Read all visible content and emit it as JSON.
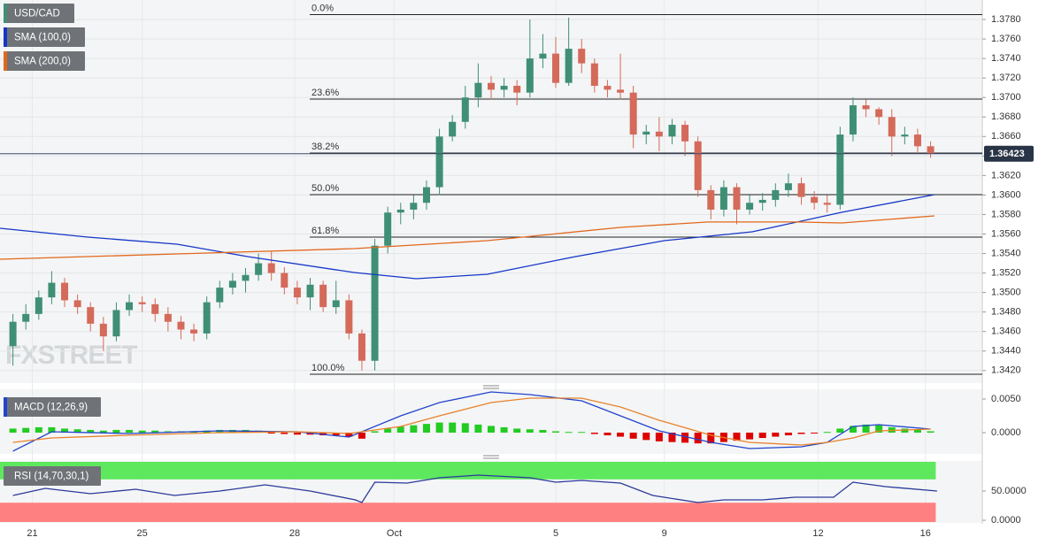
{
  "chart_data": [
    {
      "type": "candlestick",
      "watermark": "FXSTREET",
      "ohlc": {
        "name": "USD/CAD",
        "up_color": "#3f8f75",
        "down_color": "#d46a5a",
        "open": [
          1.3445,
          1.347,
          1.3478,
          1.3495,
          1.351,
          1.3492,
          1.3485,
          1.3468,
          1.3455,
          1.3482,
          1.349,
          1.3488,
          1.3478,
          1.347,
          1.3462,
          1.3458,
          1.349,
          1.3505,
          1.3512,
          1.3518,
          1.353,
          1.352,
          1.3505,
          1.3495,
          1.3508,
          1.3485,
          1.3492,
          1.3458,
          1.343,
          1.3548,
          1.3582,
          1.3585,
          1.3592,
          1.3608,
          1.366,
          1.3675,
          1.37,
          1.3715,
          1.3708,
          1.3712,
          1.3705,
          1.374,
          1.3745,
          1.3715,
          1.375,
          1.3735,
          1.3712,
          1.3708,
          1.3705,
          1.3662,
          1.3665,
          1.366,
          1.3672,
          1.3655,
          1.3605,
          1.3585,
          1.3608,
          1.3585,
          1.3592,
          1.3595,
          1.3605,
          1.3612,
          1.3598,
          1.3592,
          1.359,
          1.3662,
          1.3692,
          1.3688,
          1.368,
          1.366,
          1.3662,
          1.365
        ],
        "high": [
          1.3478,
          1.3488,
          1.3502,
          1.3522,
          1.3515,
          1.3498,
          1.349,
          1.3475,
          1.349,
          1.3498,
          1.3496,
          1.3494,
          1.3485,
          1.3476,
          1.3468,
          1.3496,
          1.3512,
          1.352,
          1.3525,
          1.354,
          1.3542,
          1.3526,
          1.3512,
          1.3515,
          1.3512,
          1.3512,
          1.3498,
          1.3462,
          1.3555,
          1.3588,
          1.3592,
          1.36,
          1.3615,
          1.3668,
          1.3682,
          1.3712,
          1.3735,
          1.3722,
          1.372,
          1.3718,
          1.378,
          1.3765,
          1.3762,
          1.3782,
          1.376,
          1.374,
          1.3718,
          1.3745,
          1.3712,
          1.3672,
          1.368,
          1.3678,
          1.3676,
          1.366,
          1.361,
          1.3615,
          1.3612,
          1.36,
          1.3602,
          1.3612,
          1.3622,
          1.3618,
          1.3604,
          1.36,
          1.367,
          1.37,
          1.3698,
          1.369,
          1.3688,
          1.367,
          1.3668,
          1.3655
        ],
        "low": [
          1.3425,
          1.3462,
          1.3472,
          1.3488,
          1.3485,
          1.3478,
          1.346,
          1.344,
          1.345,
          1.3476,
          1.348,
          1.347,
          1.346,
          1.3452,
          1.345,
          1.3452,
          1.3484,
          1.3498,
          1.35,
          1.3512,
          1.3512,
          1.3498,
          1.3488,
          1.3482,
          1.348,
          1.3478,
          1.3452,
          1.342,
          1.342,
          1.354,
          1.357,
          1.3575,
          1.3585,
          1.36,
          1.3655,
          1.3668,
          1.369,
          1.3698,
          1.37,
          1.3692,
          1.37,
          1.373,
          1.371,
          1.3712,
          1.3725,
          1.3705,
          1.37,
          1.3698,
          1.3648,
          1.3652,
          1.3645,
          1.3652,
          1.364,
          1.3598,
          1.3575,
          1.3578,
          1.357,
          1.358,
          1.3584,
          1.3588,
          1.3598,
          1.359,
          1.3585,
          1.3582,
          1.3585,
          1.3655,
          1.368,
          1.3672,
          1.364,
          1.3652,
          1.3642,
          1.3638
        ],
        "close": [
          1.347,
          1.3478,
          1.3495,
          1.351,
          1.3492,
          1.3485,
          1.3468,
          1.3455,
          1.3482,
          1.349,
          1.3488,
          1.3478,
          1.347,
          1.3462,
          1.3458,
          1.349,
          1.3505,
          1.3512,
          1.3518,
          1.353,
          1.352,
          1.3505,
          1.3495,
          1.3508,
          1.3485,
          1.3492,
          1.3458,
          1.343,
          1.3548,
          1.3582,
          1.3585,
          1.3592,
          1.3608,
          1.366,
          1.3675,
          1.37,
          1.3715,
          1.3708,
          1.3712,
          1.3705,
          1.374,
          1.3745,
          1.3715,
          1.375,
          1.3735,
          1.3712,
          1.3708,
          1.3705,
          1.3662,
          1.3665,
          1.366,
          1.3672,
          1.3655,
          1.3605,
          1.3585,
          1.3608,
          1.3585,
          1.3592,
          1.3595,
          1.3605,
          1.3612,
          1.3598,
          1.3592,
          1.359,
          1.3662,
          1.3692,
          1.3688,
          1.368,
          1.366,
          1.3662,
          1.365,
          1.3642
        ]
      },
      "series": [
        {
          "name": "SMA (100,0)",
          "color": "#1436c8",
          "x": [
            -1,
            5.8,
            12.7,
            18.2,
            26.4,
            31.2,
            36.7,
            43.5,
            50.4,
            57.2,
            64.1,
            71.3
          ],
          "values": [
            1.35659,
            1.35568,
            1.35496,
            1.35368,
            1.35205,
            1.35142,
            1.35187,
            1.35368,
            1.35532,
            1.35623,
            1.35822,
            1.36004
          ]
        },
        {
          "name": "SMA (200,0)",
          "color": "#e2671c",
          "x": [
            -1,
            12.7,
            26.4,
            36.7,
            47,
            53.8,
            60.6,
            64.1,
            71.3
          ],
          "values": [
            1.35341,
            1.35396,
            1.3545,
            1.35532,
            1.35668,
            1.35723,
            1.35723,
            1.35713,
            1.35786
          ]
        }
      ],
      "fib_levels": [
        {
          "label": "0.0%",
          "value": 1.3785
        },
        {
          "label": "23.6%",
          "value": 1.36984
        },
        {
          "label": "38.2%",
          "value": 1.3643
        },
        {
          "label": "50.0%",
          "value": 1.36004
        },
        {
          "label": "61.8%",
          "value": 1.35568
        },
        {
          "label": "100.0%",
          "value": 1.34162
        }
      ],
      "last_price": 1.36423,
      "xlim": [
        -1,
        75
      ],
      "ylim": [
        1.3408,
        1.38
      ],
      "xticks": [
        {
          "value": 1.5,
          "label": "21"
        },
        {
          "value": 10,
          "label": "25"
        },
        {
          "value": 21.8,
          "label": "28"
        },
        {
          "value": 29.5,
          "label": "Oct"
        },
        {
          "value": 42,
          "label": "5"
        },
        {
          "value": 50.4,
          "label": "9"
        },
        {
          "value": 62.3,
          "label": "12"
        },
        {
          "value": 70.6,
          "label": "16"
        }
      ],
      "yticks": [
        {
          "value": 1.342,
          "label": "1.3420"
        },
        {
          "value": 1.344,
          "label": "1.3440"
        },
        {
          "value": 1.346,
          "label": "1.3460"
        },
        {
          "value": 1.348,
          "label": "1.3480"
        },
        {
          "value": 1.35,
          "label": "1.3500"
        },
        {
          "value": 1.352,
          "label": "1.3520"
        },
        {
          "value": 1.354,
          "label": "1.3540"
        },
        {
          "value": 1.356,
          "label": "1.3560"
        },
        {
          "value": 1.358,
          "label": "1.3580"
        },
        {
          "value": 1.36,
          "label": "1.3600"
        },
        {
          "value": 1.362,
          "label": "1.3620"
        },
        {
          "value": 1.364,
          "label": "1.3640"
        },
        {
          "value": 1.366,
          "label": "1.3660"
        },
        {
          "value": 1.368,
          "label": "1.3680"
        },
        {
          "value": 1.37,
          "label": "1.3700"
        },
        {
          "value": 1.372,
          "label": "1.3720"
        },
        {
          "value": 1.374,
          "label": "1.3740"
        },
        {
          "value": 1.376,
          "label": "1.3760"
        },
        {
          "value": 1.378,
          "label": "1.3780"
        }
      ],
      "grid": true
    },
    {
      "type": "macd",
      "title": "MACD (12,26,9)",
      "histogram": {
        "up_color": "#22cc22",
        "down_color": "#dd0000",
        "values": [
          0.0006,
          0.0007,
          0.0008,
          0.0008,
          0.0006,
          0.0005,
          0.0004,
          0.0003,
          0.0004,
          0.0004,
          0.0003,
          0.0003,
          0.0002,
          0.0002,
          0.0002,
          0.0003,
          0.0004,
          0.0004,
          0.0004,
          0.0003,
          -0.0001,
          -0.0002,
          -0.0003,
          -0.0003,
          -0.0004,
          -0.0004,
          -0.0006,
          -0.0009,
          0.0002,
          0.0006,
          0.0009,
          0.0011,
          0.0013,
          0.0015,
          0.0015,
          0.0014,
          0.0012,
          0.001,
          0.0008,
          0.0006,
          0.0005,
          0.0004,
          0.0002,
          0.0001,
          0.0001,
          -0.0002,
          -0.0004,
          -0.0006,
          -0.0009,
          -0.0011,
          -0.0013,
          -0.0014,
          -0.0015,
          -0.0016,
          -0.0016,
          -0.0014,
          -0.0012,
          -0.001,
          -0.0008,
          -0.0006,
          -0.0004,
          -0.0002,
          -0.0001,
          0.0001,
          0.0006,
          0.001,
          0.0012,
          0.0011,
          0.0008,
          0.0006,
          0.0004,
          0.0002
        ]
      },
      "series": [
        {
          "color": "#2244cc",
          "x": [
            0,
            3,
            9,
            16,
            22,
            26,
            30,
            33,
            37,
            40,
            44,
            47,
            50,
            54,
            57,
            61,
            63,
            65,
            67,
            71
          ],
          "values": [
            -0.00276,
            0.00013,
            -0.00013,
            0.00026,
            0.00013,
            -0.00066,
            0.0025,
            0.00447,
            0.00605,
            0.00566,
            0.00474,
            0.0025,
            0.00026,
            -0.00145,
            -0.00237,
            -0.00211,
            -0.00145,
            0.00092,
            0.00118,
            0.00053
          ]
        },
        {
          "color": "#e8822a",
          "x": [
            0,
            3,
            9,
            16,
            22,
            26,
            30,
            33,
            37,
            40,
            44,
            47,
            50,
            54,
            57,
            61,
            63,
            65,
            67,
            71
          ],
          "values": [
            -0.00145,
            -0.00079,
            -0.00039,
            0,
            0.00013,
            -0.00013,
            0.00092,
            0.0025,
            0.00447,
            0.00513,
            0.00513,
            0.00382,
            0.00184,
            -0.00039,
            -0.00145,
            -0.00184,
            -0.00145,
            -0.00079,
            0.00026,
            0.00053
          ]
        }
      ],
      "xlim": [
        -1,
        75
      ],
      "ylim": [
        -0.00303,
        0.00645
      ],
      "yticks": [
        {
          "value": 0.005,
          "label": "0.0050"
        },
        {
          "value": 0,
          "label": "0.0000"
        }
      ]
    },
    {
      "type": "rsi",
      "title": "RSI (14,70,30,1)",
      "overbought": 70,
      "oversold": 30,
      "overbought_color": "#5ee85e",
      "oversold_color": "#ff8080",
      "series": [
        {
          "color": "#2a3a9a",
          "x": [
            0,
            2.5,
            6,
            9.5,
            12.5,
            16,
            19.5,
            23,
            26.5,
            27,
            28,
            30.5,
            33,
            36,
            40,
            42,
            44,
            47,
            49.5,
            53,
            55,
            58,
            60.5,
            63.5,
            65,
            67.5,
            71.5
          ],
          "values": [
            42.4,
            54.6,
            45.5,
            53.0,
            42.4,
            50.0,
            60.6,
            50.0,
            34.9,
            30.3,
            65.2,
            63.6,
            72.7,
            77.3,
            72.7,
            65.2,
            68.2,
            63.6,
            42.4,
            30.3,
            34.9,
            34.9,
            39.4,
            39.4,
            65.2,
            57.6,
            50.0
          ]
        }
      ],
      "xlim": [
        -1,
        75
      ],
      "ylim": [
        -3,
        100
      ],
      "yticks": [
        {
          "value": 50,
          "label": "50.0000"
        },
        {
          "value": 0,
          "label": "0.0000"
        }
      ]
    }
  ]
}
